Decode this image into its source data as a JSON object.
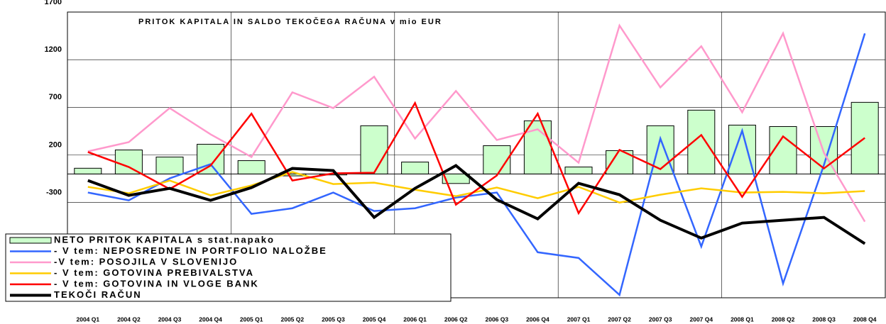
{
  "chart_data": {
    "type": "bar_line",
    "title": "PRITOK KAPITALA IN SALDO TEKOČEGA RAČUNA v mio EUR",
    "categories": [
      "2004 Q1",
      "2004 Q2",
      "2004 Q3",
      "2004 Q4",
      "2005 Q1",
      "2005 Q2",
      "2005 Q3",
      "2005 Q4",
      "2006 Q1",
      "2006 Q2",
      "2006 Q3",
      "2006 Q4",
      "2007 Q1",
      "2007 Q2",
      "2007 Q3",
      "2007 Q4",
      "2008 Q1",
      "2008 Q2",
      "2008 Q3",
      "2008 Q4"
    ],
    "ylim": [
      -1300,
      1700
    ],
    "yticks": [
      -300,
      200,
      700,
      1200,
      1700
    ],
    "grid": true,
    "series": [
      {
        "name": "NETO PRITOK KAPITALA s stat.napako",
        "type": "bar",
        "color": "#ccffcc",
        "values": [
          60,
          252,
          178,
          312,
          140,
          -20,
          -10,
          506,
          125,
          -100,
          297,
          558,
          73,
          245,
          506,
          670,
          513,
          498,
          498,
          752
        ]
      },
      {
        "name": "- V tem: NEPOSREDNE IN PORTFOLIO NALOŽBE",
        "type": "line",
        "color": "#3366ff",
        "values": [
          -195,
          -277,
          -46,
          103,
          -419,
          -360,
          -195,
          -389,
          -360,
          -248,
          -195,
          -822,
          -882,
          -1270,
          372,
          -762,
          454,
          -1150,
          95,
          1476
        ]
      },
      {
        "name": "-V tem: POSOJILA V SLOVENIJO",
        "type": "line",
        "color": "#ff99cc",
        "values": [
          237,
          334,
          692,
          416,
          178,
          857,
          692,
          1021,
          372,
          871,
          357,
          469,
          118,
          1558,
          909,
          1341,
          648,
          1476,
          222,
          -501
        ]
      },
      {
        "name": "- V tem: GOTOVINA PREBIVALSTVA",
        "type": "line",
        "color": "#ffcc00",
        "values": [
          -136,
          -203,
          -69,
          -225,
          -121,
          21,
          -106,
          -91,
          -166,
          -233,
          -143,
          -255,
          -136,
          -300,
          -218,
          -151,
          -195,
          -188,
          -203,
          -180
        ]
      },
      {
        "name": "- V tem: GOTOVINA IN VLOGE BANK",
        "type": "line",
        "color": "#ff0000",
        "values": [
          230,
          73,
          -158,
          88,
          633,
          -69,
          6,
          13,
          745,
          -322,
          -16,
          633,
          -412,
          252,
          51,
          409,
          -240,
          394,
          58,
          379
        ]
      },
      {
        "name": "TEKOČI RAČUN",
        "type": "line",
        "color": "#000000",
        "values": [
          -69,
          -225,
          -151,
          -277,
          -143,
          58,
          36,
          -456,
          -151,
          88,
          -270,
          -471,
          -98,
          -218,
          -486,
          -673,
          -516,
          -486,
          -456,
          -732
        ]
      }
    ]
  }
}
